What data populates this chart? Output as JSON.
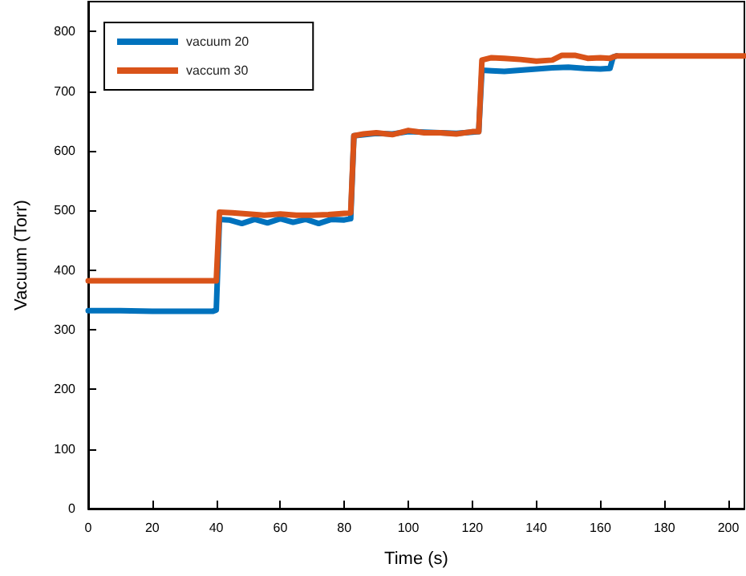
{
  "chart_data": {
    "type": "line",
    "xlabel": "Time (s)",
    "ylabel": "Vacuum (Torr)",
    "xlim": [
      0,
      205
    ],
    "xticks": [
      0,
      20,
      40,
      60,
      80,
      100,
      120,
      140,
      160,
      180,
      200
    ],
    "ylim": [
      0,
      850
    ],
    "yticks": [
      0,
      100,
      200,
      300,
      400,
      500,
      600,
      700,
      800
    ],
    "grid": false,
    "legend": "top left",
    "marker": "none",
    "line_style": "solid",
    "series": [
      {
        "name": "vacuum 20",
        "color": "#0072bd",
        "x": [
          0,
          10,
          20,
          30,
          39,
          40,
          41,
          44,
          48,
          52,
          56,
          60,
          64,
          68,
          72,
          76,
          80,
          82,
          83,
          90,
          95,
          100,
          115,
          120,
          122,
          123,
          126,
          130,
          135,
          140,
          145,
          150,
          155,
          160,
          163,
          164,
          165
        ],
        "values": [
          332,
          332,
          331,
          331,
          331,
          333,
          485,
          484,
          478,
          485,
          479,
          486,
          480,
          485,
          478,
          485,
          484,
          486,
          625,
          629,
          628,
          632,
          629,
          631,
          632,
          735,
          734,
          733,
          735,
          737,
          739,
          740,
          738,
          737,
          738,
          757,
          759
        ]
      },
      {
        "name": "vaccum 30",
        "color": "#d95319",
        "x": [
          0,
          10,
          20,
          30,
          39,
          40,
          41,
          45,
          50,
          55,
          60,
          65,
          70,
          75,
          80,
          82,
          83,
          86,
          90,
          95,
          100,
          105,
          110,
          115,
          120,
          122,
          123,
          126,
          130,
          135,
          140,
          145,
          148,
          152,
          156,
          160,
          163,
          165,
          180,
          205
        ],
        "values": [
          382,
          382,
          382,
          382,
          382,
          382,
          497,
          496,
          494,
          492,
          494,
          492,
          492,
          493,
          495,
          496,
          625,
          628,
          630,
          627,
          634,
          630,
          630,
          628,
          632,
          632,
          752,
          756,
          755,
          753,
          750,
          752,
          760,
          760,
          755,
          756,
          755,
          759,
          759,
          759
        ]
      }
    ]
  }
}
